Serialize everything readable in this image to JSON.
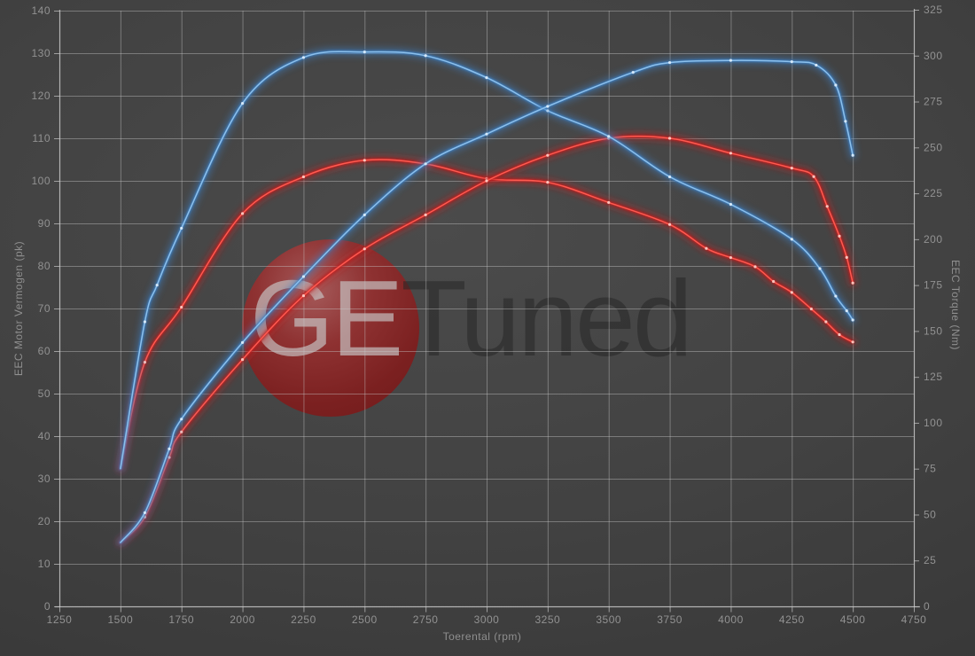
{
  "chart_data": {
    "type": "line",
    "title": "",
    "xlabel": "Toerental (rpm)",
    "ylabel_left": "EEC Motor Vermogen (pk)",
    "ylabel_right": "EEC Torque (Nm)",
    "x_axis": {
      "min": 1250,
      "max": 4750,
      "tick_step": 250
    },
    "y_axis_left": {
      "min": 0,
      "max": 140,
      "tick_step": 10
    },
    "y_axis_right": {
      "min": 0,
      "max": 325,
      "tick_step": 25
    },
    "grid": true,
    "legend_position": "none",
    "colors": {
      "background": "#424242",
      "grid": "#c8c8c8",
      "axis_text": "#929292",
      "tuned_blue": "#3c7ec2",
      "original_red": "#c81e1e"
    },
    "series": [
      {
        "id": "torque-original",
        "axis": "right",
        "color": "#c01d1d",
        "core": "#ff5a50",
        "dot": "#ffc9c2",
        "x": [
          1500,
          1600,
          1750,
          2000,
          2250,
          2500,
          2750,
          3000,
          3250,
          3500,
          3750,
          3900,
          4000,
          4100,
          4175,
          4250,
          4330,
          4390,
          4445,
          4500
        ],
        "y": [
          75,
          133,
          163,
          214,
          234,
          243,
          241,
          233,
          231,
          220,
          208,
          195,
          190,
          185,
          177,
          171,
          162,
          155,
          148,
          144
        ]
      },
      {
        "id": "power-original",
        "axis": "left",
        "color": "#c01d1d",
        "core": "#ff5a50",
        "dot": "#ffc9c2",
        "x": [
          1500,
          1600,
          1700,
          1750,
          2000,
          2250,
          2500,
          2750,
          3000,
          3250,
          3500,
          3750,
          4000,
          4250,
          4340,
          4395,
          4445,
          4475,
          4500
        ],
        "y": [
          15,
          21,
          35,
          41,
          58,
          73,
          84,
          92,
          100,
          106,
          110,
          110,
          106.5,
          103,
          101,
          94,
          87,
          82,
          76
        ]
      },
      {
        "id": "torque-tuned",
        "axis": "right",
        "color": "#3c7ec2",
        "core": "#8cc0ec",
        "dot": "#d9ebfb",
        "x": [
          1500,
          1600,
          1650,
          1750,
          2000,
          2250,
          2500,
          2750,
          3000,
          3250,
          3500,
          3750,
          4000,
          4250,
          4365,
          4430,
          4475,
          4500
        ],
        "y": [
          75,
          155,
          175,
          206,
          274,
          299,
          302,
          300,
          288,
          270,
          256,
          234,
          219,
          200,
          184,
          169,
          161,
          156
        ]
      },
      {
        "id": "power-tuned",
        "axis": "left",
        "color": "#3c7ec2",
        "core": "#8cc0ec",
        "dot": "#d9ebfb",
        "x": [
          1500,
          1600,
          1700,
          1750,
          2000,
          2250,
          2500,
          2750,
          3000,
          3250,
          3600,
          3750,
          4000,
          4250,
          4350,
          4430,
          4470,
          4500
        ],
        "y": [
          15,
          22,
          37,
          44,
          62,
          77.5,
          92,
          104,
          111,
          117.5,
          125.5,
          127.8,
          128.3,
          128,
          127.2,
          122.5,
          114,
          106
        ]
      }
    ],
    "watermark": {
      "text_primary": "GE",
      "text_secondary": "Tuned",
      "circle_color": "#8a1d1d"
    }
  }
}
